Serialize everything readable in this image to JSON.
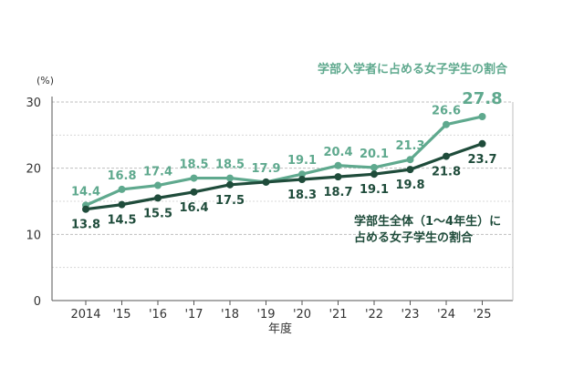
{
  "chart_data": {
    "type": "line",
    "unit_label": "(%)",
    "xlabel": "年度",
    "ylim": [
      0,
      30
    ],
    "yticks": [
      0,
      10,
      20,
      30
    ],
    "categories": [
      "2014",
      "'15",
      "'16",
      "'17",
      "'18",
      "'19",
      "'20",
      "'21",
      "'22",
      "'23",
      "'24",
      "'25"
    ],
    "grid": "horizontal-dashed",
    "series": [
      {
        "name": "学部入学者に占める女子学生の割合",
        "color": "#5fa98e",
        "values": [
          14.4,
          16.8,
          17.4,
          18.5,
          18.5,
          17.9,
          19.1,
          20.4,
          20.1,
          21.3,
          26.6,
          27.8
        ],
        "labels": [
          "14.4",
          "16.8",
          "17.4",
          "18.5",
          "18.5",
          "17.9",
          "19.1",
          "20.4",
          "20.1",
          "21.3",
          "26.6",
          "27.8"
        ],
        "label_position": "above"
      },
      {
        "name_lines": [
          "学部生全体（1〜4年生）に",
          "占める女子学生の割合"
        ],
        "color": "#1f4c3b",
        "values": [
          13.8,
          14.5,
          15.5,
          16.4,
          17.5,
          17.9,
          18.3,
          18.7,
          19.1,
          19.8,
          21.8,
          23.7
        ],
        "labels": [
          "13.8",
          "14.5",
          "15.5",
          "16.4",
          "17.5",
          "",
          "18.3",
          "18.7",
          "19.1",
          "19.8",
          "21.8",
          "23.7"
        ],
        "label_position": "below"
      }
    ]
  }
}
